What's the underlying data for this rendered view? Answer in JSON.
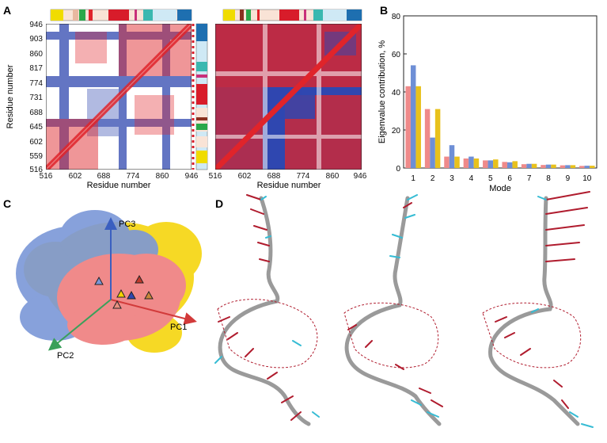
{
  "panels": {
    "A": {
      "letter": "A",
      "left_map": {
        "x_label": "Residue number",
        "y_label": "Residue number",
        "x_ticks": [
          "516",
          "602",
          "688",
          "774",
          "860",
          "946"
        ],
        "y_ticks": [
          "946",
          "903",
          "860",
          "817",
          "774",
          "731",
          "688",
          "645",
          "602",
          "559",
          "516"
        ]
      },
      "right_map": {
        "x_label": "Residue number",
        "x_ticks": [
          "516",
          "602",
          "688",
          "774",
          "860",
          "946"
        ]
      }
    },
    "B": {
      "letter": "B"
    },
    "C": {
      "letter": "C",
      "axis_labels": {
        "pc1": "PC1",
        "pc2": "PC2",
        "pc3": "PC3"
      },
      "colors": {
        "cloud_pink": "#f08a8a",
        "cloud_blue": "#7b97d8",
        "cloud_yellow": "#f5d300",
        "pc1": "#d23a3a",
        "pc2": "#3aa05a",
        "pc3": "#3a5fc0"
      }
    },
    "D": {
      "letter": "D",
      "colors": {
        "backbone": "#9a9a9a",
        "red_vectors": "#b01c2e",
        "cyan_vectors": "#36bcd4"
      }
    }
  },
  "colors": {
    "positive": "#e0242a",
    "negative": "#2f47b0"
  },
  "chart_data": {
    "type": "bar",
    "title": "",
    "xlabel": "Mode",
    "ylabel": "Eigenvalue contribution, %",
    "ylim": [
      0,
      80
    ],
    "y_ticks": [
      0,
      20,
      40,
      60,
      80
    ],
    "categories": [
      "1",
      "2",
      "3",
      "4",
      "5",
      "6",
      "7",
      "8",
      "9",
      "10"
    ],
    "series": [
      {
        "name": "pink",
        "color": "#ef8a8a",
        "values": [
          43,
          31,
          6,
          5,
          4,
          3.2,
          2,
          1.6,
          1.4,
          1.1
        ]
      },
      {
        "name": "blue",
        "color": "#6e8fd6",
        "values": [
          54,
          16,
          12,
          6,
          4,
          3,
          2.2,
          1.8,
          1.5,
          1.2
        ]
      },
      {
        "name": "yellow",
        "color": "#e8c11c",
        "values": [
          43,
          31,
          6,
          5,
          4.5,
          3.6,
          2.2,
          1.8,
          1.5,
          1.2
        ]
      }
    ]
  }
}
